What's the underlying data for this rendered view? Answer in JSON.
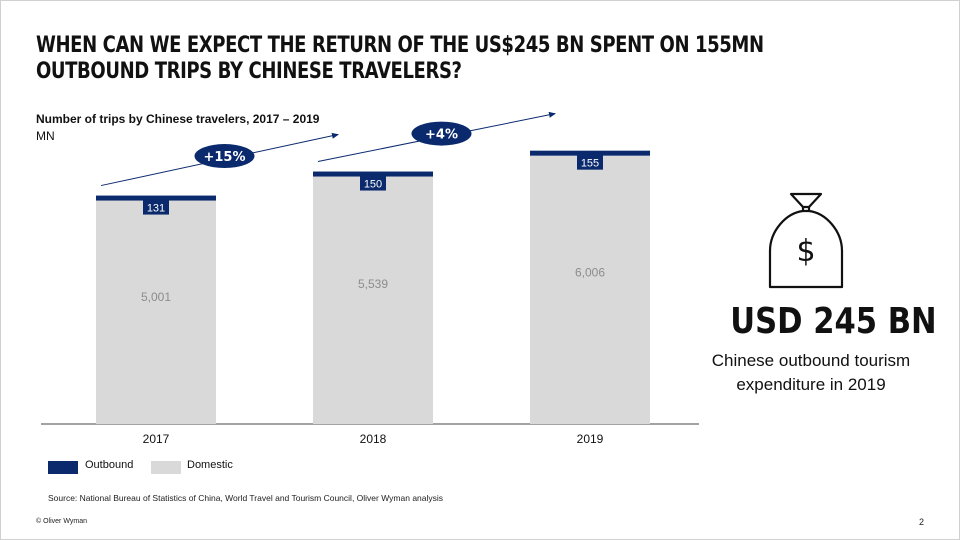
{
  "slide": {
    "title": "WHEN CAN WE EXPECT THE RETURN OF THE US$245 BN SPENT ON 155MN OUTBOUND TRIPS BY CHINESE TRAVELERS?",
    "page_number": "2",
    "copyright": "© Oliver Wyman",
    "source": "Source: National Bureau of Statistics of China, World Travel and Tourism Council, Oliver Wyman analysis"
  },
  "highlight": {
    "value": "USD 245 BN",
    "caption": "Chinese outbound tourism expenditure in 2019",
    "icon": "money-bag-dollar-icon"
  },
  "colors": {
    "outbound": "#0b2a6e",
    "domestic": "#d9d9d9",
    "domestic_label": "#8c8c8c"
  },
  "chart_data": {
    "type": "bar",
    "stacked": true,
    "title": "Number of trips by Chinese travelers, 2017 – 2019",
    "unit": "MN",
    "categories": [
      "2017",
      "2018",
      "2019"
    ],
    "series": [
      {
        "name": "Domestic",
        "values": [
          5001,
          5539,
          6006
        ],
        "labels": [
          "5,001",
          "5,539",
          "6,006"
        ]
      },
      {
        "name": "Outbound",
        "values": [
          131,
          150,
          155
        ],
        "labels": [
          "131",
          "150",
          "155"
        ]
      }
    ],
    "growth_annotations": [
      {
        "label": "+15%",
        "from": "2017",
        "to": "2018"
      },
      {
        "label": "+4%",
        "from": "2018",
        "to": "2019"
      }
    ],
    "ylim": [
      0,
      6200
    ],
    "legend": [
      "Outbound",
      "Domestic"
    ],
    "legend_position": "bottom-left"
  }
}
